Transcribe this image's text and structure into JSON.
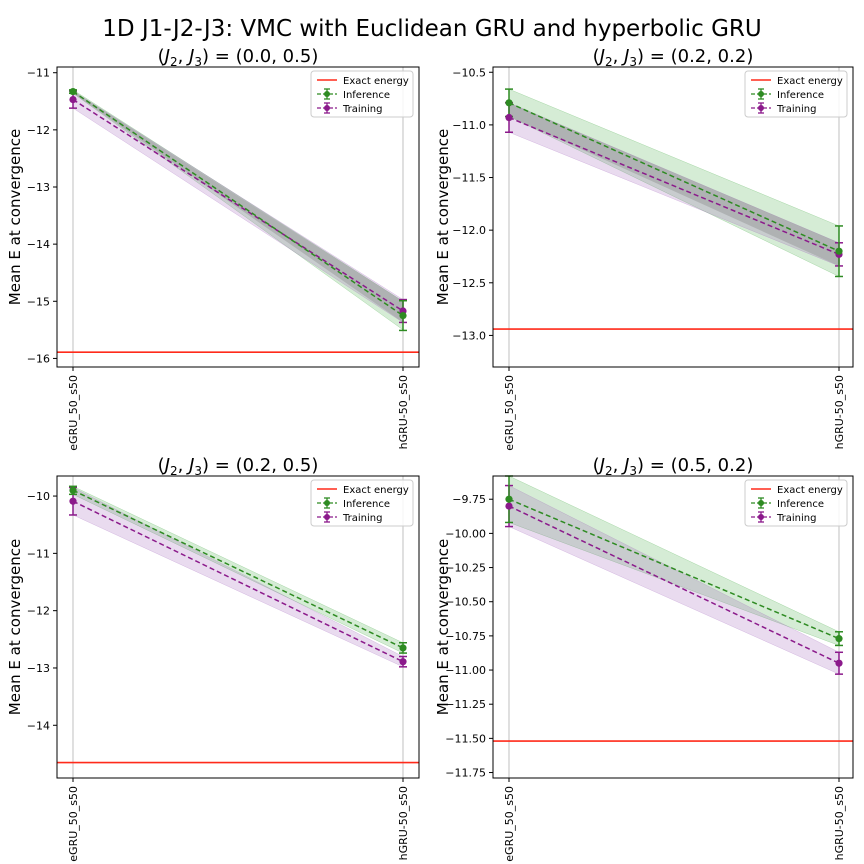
{
  "figure": {
    "suptitle": "1D J1-J2-J3: VMC with Euclidean GRU and hyperbolic GRU"
  },
  "colors": {
    "exact": "#ff2a1a",
    "inference": "#2e8b22",
    "training": "#8b1a8b",
    "inference_band": "#2ca02c",
    "training_band": "#9b59b6",
    "overlap_band": "#808080",
    "axis": "#000000",
    "grid": "#b0b0b0"
  },
  "legend": {
    "exact": "Exact energy",
    "inference": "Inference",
    "training": "Training",
    "placement": "upper right"
  },
  "chart_data": [
    {
      "type": "line",
      "title_prefix": "(",
      "title_sym1": "J",
      "title_sub1": "2",
      "title_sep": ", ",
      "title_sym2": "J",
      "title_sub2": "3",
      "title_suffix": ") = (0.0, 0.5)",
      "ylabel": "Mean E at convergence",
      "categories": [
        "eGRU_50_s50",
        "hGRU-50_s50"
      ],
      "ylim": [
        -16.15,
        -10.9
      ],
      "yticks": [
        -16,
        -15,
        -14,
        -13,
        -12,
        -11
      ],
      "ytick_labels": [
        "−16",
        "−15",
        "−14",
        "−13",
        "−12",
        "−11"
      ],
      "exact_energy": -15.89,
      "series": [
        {
          "name": "Inference",
          "values": [
            -11.33,
            -15.25
          ],
          "errors": [
            0.03,
            0.26
          ],
          "band": [
            0.03,
            0.25
          ]
        },
        {
          "name": "Training",
          "values": [
            -11.47,
            -15.17
          ],
          "errors": [
            0.15,
            0.2
          ],
          "band": [
            0.15,
            0.2
          ]
        }
      ]
    },
    {
      "type": "line",
      "title_prefix": "(",
      "title_sym1": "J",
      "title_sub1": "2",
      "title_sep": ", ",
      "title_sym2": "J",
      "title_sub2": "3",
      "title_suffix": ") = (0.2, 0.2)",
      "ylabel": "Mean E at convergence",
      "categories": [
        "eGRU_50_s50",
        "hGRU-50_s50"
      ],
      "ylim": [
        -13.3,
        -10.45
      ],
      "yticks": [
        -13.0,
        -12.5,
        -12.0,
        -11.5,
        -11.0,
        -10.5
      ],
      "ytick_labels": [
        "−13.0",
        "−12.5",
        "−12.0",
        "−11.5",
        "−11.0",
        "−10.5"
      ],
      "exact_energy": -12.94,
      "series": [
        {
          "name": "Inference",
          "values": [
            -10.79,
            -12.2
          ],
          "errors": [
            0.13,
            0.24
          ],
          "band": [
            0.13,
            0.24
          ]
        },
        {
          "name": "Training",
          "values": [
            -10.93,
            -12.23
          ],
          "errors": [
            0.14,
            0.11
          ],
          "band": [
            0.14,
            0.11
          ]
        }
      ]
    },
    {
      "type": "line",
      "title_prefix": "(",
      "title_sym1": "J",
      "title_sub1": "2",
      "title_sep": ", ",
      "title_sym2": "J",
      "title_sub2": "3",
      "title_suffix": ") = (0.2, 0.5)",
      "ylabel": "Mean E at convergence",
      "categories": [
        "eGRU_50_s50",
        "hGRU-50_s50"
      ],
      "ylim": [
        -14.92,
        -9.65
      ],
      "yticks": [
        -14,
        -13,
        -12,
        -11,
        -10
      ],
      "ytick_labels": [
        "−14",
        "−13",
        "−12",
        "−11",
        "−10"
      ],
      "exact_energy": -14.65,
      "series": [
        {
          "name": "Inference",
          "values": [
            -9.9,
            -12.65
          ],
          "errors": [
            0.07,
            0.09
          ],
          "band": [
            0.07,
            0.09
          ]
        },
        {
          "name": "Training",
          "values": [
            -10.09,
            -12.89
          ],
          "errors": [
            0.24,
            0.09
          ],
          "band": [
            0.24,
            0.09
          ]
        }
      ]
    },
    {
      "type": "line",
      "title_prefix": "(",
      "title_sym1": "J",
      "title_sub1": "2",
      "title_sep": ", ",
      "title_sym2": "J",
      "title_sub2": "3",
      "title_suffix": ") = (0.5, 0.2)",
      "ylabel": "Mean E at convergence",
      "categories": [
        "eGRU_50_s50",
        "hGRU-50_s50"
      ],
      "ylim": [
        -11.79,
        -9.58
      ],
      "yticks": [
        -11.75,
        -11.5,
        -11.25,
        -11.0,
        -10.75,
        -10.5,
        -10.25,
        -10.0,
        -9.75
      ],
      "ytick_labels": [
        "−11.75",
        "−11.50",
        "−11.25",
        "−11.00",
        "−10.75",
        "−10.50",
        "−10.25",
        "−10.00",
        "−9.75"
      ],
      "exact_energy": -11.52,
      "series": [
        {
          "name": "Inference",
          "values": [
            -9.75,
            -10.77
          ],
          "errors": [
            0.17,
            0.05
          ],
          "band": [
            0.17,
            0.05
          ]
        },
        {
          "name": "Training",
          "values": [
            -9.8,
            -10.95
          ],
          "errors": [
            0.15,
            0.08
          ],
          "band": [
            0.15,
            0.08
          ]
        }
      ]
    }
  ]
}
